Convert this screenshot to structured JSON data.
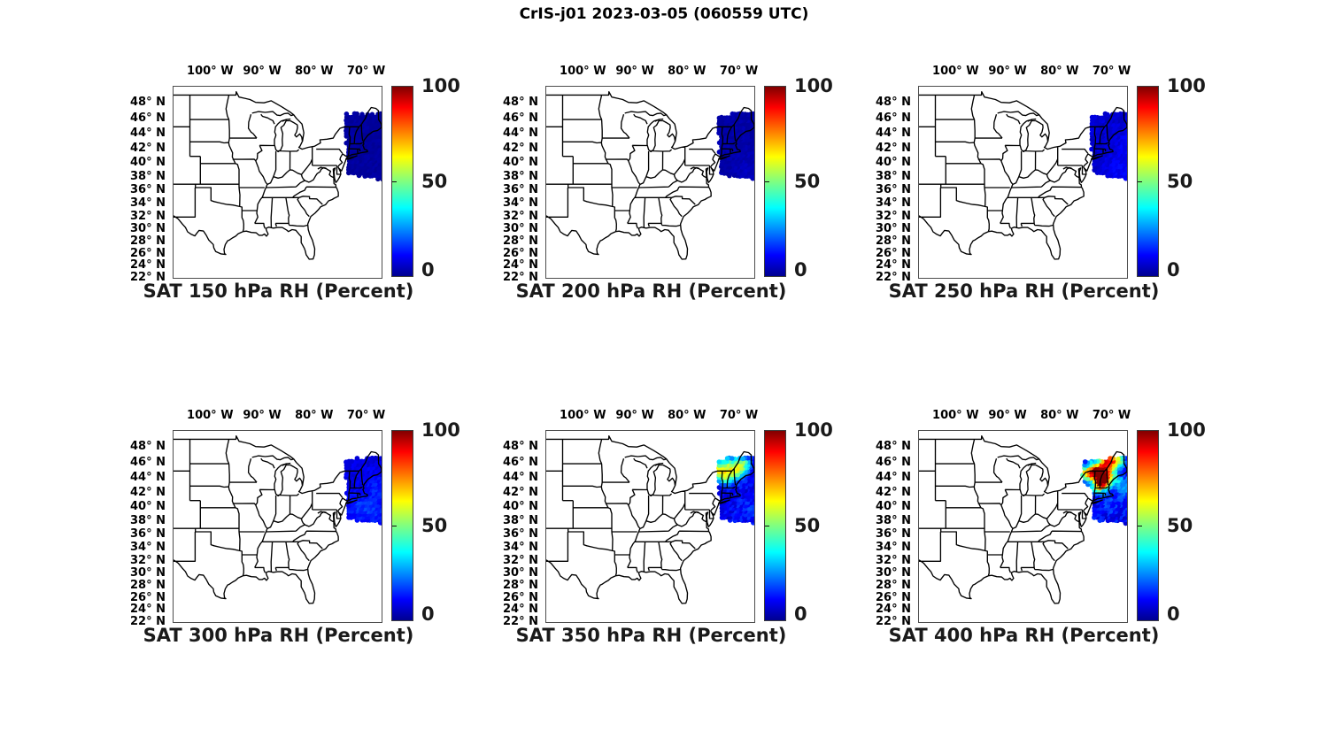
{
  "figure_title": "CrIS-j01 2023-03-05 (060559 UTC)",
  "axes": {
    "lon_tick_labels": [
      "100° W",
      "90° W",
      "80° W",
      "70° W"
    ],
    "lat_tick_labels": [
      "48° N",
      "46° N",
      "44° N",
      "42° N",
      "40° N",
      "38° N",
      "36° N",
      "34° N",
      "32° N",
      "30° N",
      "28° N",
      "26° N",
      "24° N",
      "22° N"
    ]
  },
  "colorbar": {
    "tick_labels": [
      "100",
      "50",
      "0"
    ]
  },
  "chart_data": {
    "type": "scatter",
    "projection": "mercator",
    "suptitle": "CrIS-j01 2023-03-05 (060559 UTC)",
    "map_extent": {
      "west_lon_w": 107.2,
      "east_lon_w": 67.2,
      "south_lat_n": 22,
      "north_lat_n": 50
    },
    "lon_ticks_deg_w": [
      100,
      90,
      80,
      70
    ],
    "lat_ticks_deg_n": [
      48,
      46,
      44,
      42,
      40,
      38,
      36,
      34,
      32,
      30,
      28,
      26,
      24,
      22
    ],
    "colorbar": {
      "min": 0,
      "max": 100,
      "ticks": [
        0,
        50,
        100
      ],
      "colormap": "jet",
      "units": "Percent RH"
    },
    "panels": [
      {
        "title": "SAT 150 hPa RH (Percent)",
        "pressure_hPa": 150,
        "swath": {
          "lon_w": [
            66.95,
            74.5
          ],
          "lat_n": [
            37.8,
            47.0
          ]
        },
        "background_rh_pct": 3,
        "rh_noise_pct": 1.2,
        "clusters": []
      },
      {
        "title": "SAT 200 hPa RH (Percent)",
        "pressure_hPa": 200,
        "swath": {
          "lon_w": [
            66.95,
            74.5
          ],
          "lat_n": [
            37.8,
            47.0
          ]
        },
        "background_rh_pct": 4,
        "rh_noise_pct": 1.5,
        "clusters": [
          {
            "lon_w": 68.5,
            "lat_n": 39.2,
            "r_deg": 2.0,
            "amp_rh": 2
          }
        ]
      },
      {
        "title": "SAT 250 hPa RH (Percent)",
        "pressure_hPa": 250,
        "swath": {
          "lon_w": [
            66.95,
            74.5
          ],
          "lat_n": [
            37.8,
            47.0
          ]
        },
        "background_rh_pct": 8,
        "rh_noise_pct": 2.5,
        "clusters": [
          {
            "lon_w": 68.5,
            "lat_n": 39.5,
            "r_deg": 2.2,
            "amp_rh": 4
          },
          {
            "lon_w": 67.5,
            "lat_n": 43.0,
            "r_deg": 1.5,
            "amp_rh": 3
          }
        ]
      },
      {
        "title": "SAT 300 hPa RH (Percent)",
        "pressure_hPa": 300,
        "swath": {
          "lon_w": [
            66.95,
            74.5
          ],
          "lat_n": [
            37.8,
            47.0
          ]
        },
        "background_rh_pct": 10,
        "rh_noise_pct": 3,
        "clusters": [
          {
            "lon_w": 69.5,
            "lat_n": 39.8,
            "r_deg": 2.2,
            "amp_rh": 7
          },
          {
            "lon_w": 68.0,
            "lat_n": 43.0,
            "r_deg": 1.5,
            "amp_rh": 5
          },
          {
            "lon_w": 72.5,
            "lat_n": 40.5,
            "r_deg": 1.5,
            "amp_rh": 4
          }
        ]
      },
      {
        "title": "SAT 350 hPa RH (Percent)",
        "pressure_hPa": 350,
        "swath": {
          "lon_w": [
            66.95,
            74.5
          ],
          "lat_n": [
            37.8,
            47.0
          ]
        },
        "background_rh_pct": 10,
        "rh_noise_pct": 5,
        "clusters": [
          {
            "lon_w": 72.5,
            "lat_n": 45.3,
            "r_deg": 1.6,
            "amp_rh": 38
          },
          {
            "lon_w": 74.0,
            "lat_n": 45.0,
            "r_deg": 0.9,
            "amp_rh": 30
          },
          {
            "lon_w": 70.5,
            "lat_n": 45.2,
            "r_deg": 1.2,
            "amp_rh": 28
          },
          {
            "lon_w": 69.3,
            "lat_n": 46.0,
            "r_deg": 0.9,
            "amp_rh": 25
          },
          {
            "lon_w": 72.8,
            "lat_n": 43.9,
            "r_deg": 0.8,
            "amp_rh": 18
          },
          {
            "lon_w": 68.2,
            "lat_n": 39.8,
            "r_deg": 2.0,
            "amp_rh": 7
          }
        ]
      },
      {
        "title": "SAT 400 hPa RH (Percent)",
        "pressure_hPa": 400,
        "swath": {
          "lon_w": [
            66.95,
            74.5
          ],
          "lat_n": [
            37.8,
            47.0
          ]
        },
        "swath_extension": {
          "lon_w": [
            74.3,
            75.9
          ],
          "lat_n": [
            43.2,
            46.2
          ]
        },
        "background_rh_pct": 11,
        "rh_noise_pct": 6,
        "clusters": [
          {
            "lon_w": 72.0,
            "lat_n": 44.8,
            "r_deg": 1.3,
            "amp_rh": 78
          },
          {
            "lon_w": 72.2,
            "lat_n": 43.6,
            "r_deg": 0.9,
            "amp_rh": 70
          },
          {
            "lon_w": 73.8,
            "lat_n": 45.0,
            "r_deg": 1.0,
            "amp_rh": 52
          },
          {
            "lon_w": 75.0,
            "lat_n": 44.6,
            "r_deg": 0.8,
            "amp_rh": 40
          },
          {
            "lon_w": 71.0,
            "lat_n": 46.3,
            "r_deg": 1.0,
            "amp_rh": 55
          },
          {
            "lon_w": 69.2,
            "lat_n": 46.5,
            "r_deg": 1.0,
            "amp_rh": 45
          },
          {
            "lon_w": 73.0,
            "lat_n": 42.9,
            "r_deg": 0.9,
            "amp_rh": 30
          },
          {
            "lon_w": 69.8,
            "lat_n": 44.0,
            "r_deg": 1.0,
            "amp_rh": 20
          },
          {
            "lon_w": 67.8,
            "lat_n": 43.0,
            "r_deg": 1.2,
            "amp_rh": 15
          },
          {
            "lon_w": 70.3,
            "lat_n": 41.0,
            "r_deg": 2.0,
            "amp_rh": 6
          }
        ]
      }
    ]
  }
}
